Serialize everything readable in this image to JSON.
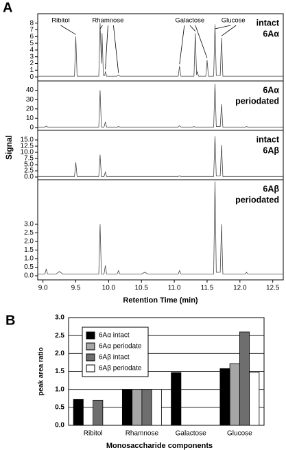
{
  "panel_labels": [
    "A",
    "B"
  ],
  "panel_a_y_label": "Signal",
  "chart_data": [
    {
      "type": "line",
      "label": [
        "intact",
        "6Aα"
      ],
      "color": "#444444",
      "xlim": [
        8.92,
        12.66
      ],
      "ylim": [
        -0.6,
        9.4
      ],
      "yticks": [
        0,
        1,
        2,
        3,
        4,
        5,
        6,
        7,
        8
      ],
      "annotations": [
        {
          "text": "Ribitol",
          "targets": [
            9.5
          ]
        },
        {
          "text": "Rhamnose",
          "targets": [
            9.87,
            9.95,
            10.15
          ]
        },
        {
          "text": "Galactose",
          "targets": [
            11.08,
            11.32,
            11.5
          ]
        },
        {
          "text": "Glucose",
          "targets": [
            11.62,
            11.72
          ]
        }
      ],
      "x": [
        8.92,
        9.48,
        9.5,
        9.52,
        9.85,
        9.87,
        9.89,
        9.9,
        9.92,
        9.94,
        9.95,
        9.97,
        10.13,
        10.15,
        10.17,
        11.06,
        11.08,
        11.1,
        11.3,
        11.32,
        11.34,
        11.35,
        11.37,
        11.48,
        11.5,
        11.52,
        11.6,
        11.62,
        11.64,
        11.7,
        11.72,
        11.74,
        12.66
      ],
      "values": [
        0.1,
        0.1,
        6.0,
        0.1,
        0.1,
        8.0,
        2,
        6.5,
        0.2,
        0.2,
        0.8,
        0.1,
        0.1,
        0.3,
        0.1,
        0.1,
        1.6,
        0.1,
        0.1,
        6.5,
        0.3,
        0.8,
        0.1,
        0.1,
        2.5,
        0.1,
        0.1,
        7.8,
        0.2,
        0.2,
        5.8,
        0.1,
        0.1
      ]
    },
    {
      "type": "line",
      "label": [
        "6Aα",
        "periodated"
      ],
      "color": "#444444",
      "xlim": [
        8.92,
        12.66
      ],
      "ylim": [
        -3,
        50
      ],
      "yticks": [
        0,
        10,
        20,
        30,
        40
      ],
      "x": [
        8.92,
        9.03,
        9.05,
        9.07,
        9.85,
        9.87,
        9.89,
        9.93,
        9.95,
        9.97,
        10.13,
        10.15,
        10.17,
        11.06,
        11.08,
        11.1,
        11.28,
        11.3,
        11.32,
        11.6,
        11.62,
        11.64,
        11.7,
        11.72,
        11.74,
        12.08,
        12.1,
        12.12,
        12.66
      ],
      "values": [
        0.5,
        0.5,
        1.5,
        0.5,
        0.5,
        40,
        0.5,
        0.5,
        6,
        0.5,
        0.5,
        1,
        0.5,
        0.5,
        2,
        0.5,
        0.5,
        1,
        0.5,
        0.5,
        47,
        1,
        1,
        25,
        0.5,
        0.5,
        1,
        0.5,
        0.5
      ]
    },
    {
      "type": "line",
      "label": [
        "intact",
        "6Aβ"
      ],
      "color": "#444444",
      "xlim": [
        8.92,
        12.66
      ],
      "ylim": [
        -1.1,
        18.9
      ],
      "yticks": [
        {
          "value": 0,
          "label": "0.0"
        },
        2.5,
        {
          "value": 5,
          "label": "5.0"
        },
        7.5,
        {
          "value": 10,
          "label": "10.0"
        },
        12.5,
        {
          "value": 15,
          "label": "15.0"
        }
      ],
      "x": [
        8.92,
        9.48,
        9.5,
        9.52,
        9.85,
        9.87,
        9.89,
        9.93,
        9.95,
        9.97,
        11.06,
        11.08,
        11.1,
        11.6,
        11.62,
        11.64,
        11.7,
        11.72,
        11.74,
        12.66
      ],
      "values": [
        0.2,
        0.2,
        6,
        0.2,
        0.2,
        9,
        0.2,
        0.2,
        2,
        0.2,
        0.2,
        0.5,
        0.2,
        0.2,
        16.5,
        0.4,
        0.4,
        13,
        0.2,
        0.2
      ]
    },
    {
      "type": "line",
      "label": [
        "6Aβ",
        "periodated"
      ],
      "color": "#444444",
      "xlim": [
        8.92,
        12.66
      ],
      "ylim": [
        -0.24,
        5.6
      ],
      "yticks": [
        {
          "value": 0,
          "label": "0.0"
        },
        0.5,
        {
          "value": 1,
          "label": "1.0"
        },
        1.5,
        {
          "value": 2,
          "label": "2.0"
        },
        2.5,
        {
          "value": 3,
          "label": "3.0"
        }
      ],
      "xticks": [
        {
          "value": 9,
          "label": "9.0"
        },
        9.5,
        {
          "value": 10,
          "label": "10.0"
        },
        10.5,
        {
          "value": 11,
          "label": "11.0"
        },
        11.5,
        {
          "value": 12,
          "label": "12.0"
        },
        12.5
      ],
      "x_label": "Retention Time (min)",
      "x": [
        8.92,
        9.03,
        9.05,
        9.07,
        9.2,
        9.25,
        9.3,
        9.85,
        9.87,
        9.89,
        9.93,
        9.95,
        9.97,
        10.13,
        10.15,
        10.17,
        10.5,
        10.55,
        10.6,
        11.06,
        11.08,
        11.1,
        11.6,
        11.62,
        11.64,
        11.7,
        11.72,
        11.74,
        12.08,
        12.1,
        12.12,
        12.66
      ],
      "values": [
        0.1,
        0.1,
        0.4,
        0.1,
        0.1,
        0.25,
        0.1,
        0.1,
        3.0,
        0.1,
        0.1,
        0.6,
        0.1,
        0.1,
        0.3,
        0.1,
        0.1,
        0.2,
        0.1,
        0.1,
        0.3,
        0.1,
        0.1,
        5.5,
        0.2,
        0.2,
        3.0,
        0.1,
        0.1,
        0.2,
        0.1,
        0.1
      ]
    },
    {
      "type": "bar",
      "y_label": "peak area ratio",
      "x_label": "Monosaccharide components",
      "categories": [
        "Ribitol",
        "Rhamnose",
        "Galactose",
        "Glucose"
      ],
      "series": [
        {
          "name": "6Aα intact",
          "color": "#000000",
          "values": [
            0.72,
            1.0,
            1.47,
            1.58
          ]
        },
        {
          "name": "6Aα periodate",
          "color": "#a6a6a6",
          "values": [
            null,
            1.0,
            null,
            1.72
          ]
        },
        {
          "name": "6Aβ intact",
          "color": "#6e6e6e",
          "values": [
            0.7,
            1.0,
            null,
            2.6
          ]
        },
        {
          "name": "6Aβ periodate",
          "color": "#ffffff",
          "values": [
            null,
            1.0,
            null,
            1.48
          ]
        }
      ],
      "ylim": [
        0,
        3
      ],
      "yticks": [
        {
          "value": 0,
          "label": "0.0"
        },
        0.5,
        {
          "value": 1,
          "label": "1.0"
        },
        1.5,
        {
          "value": 2,
          "label": "2.0"
        },
        2.5,
        {
          "value": 3,
          "label": "3.0"
        }
      ],
      "grid": true,
      "legend": "upper left"
    }
  ]
}
